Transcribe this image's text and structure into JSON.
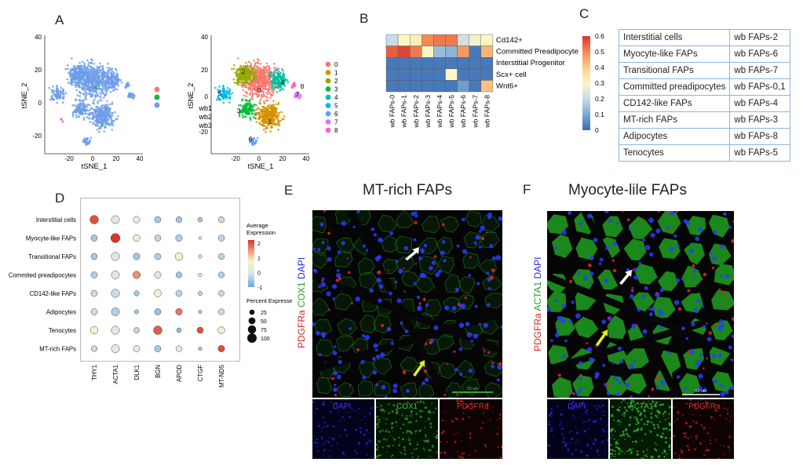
{
  "panels": {
    "a": {
      "letter": "A"
    },
    "b": {
      "letter": "B"
    },
    "c": {
      "letter": "C"
    },
    "d": {
      "letter": "D"
    },
    "e": {
      "letter": "E",
      "title": "MT-rich FAPs"
    },
    "f": {
      "letter": "F",
      "title": "Myocyte-lile FAPs"
    }
  },
  "tsne": {
    "xlabel": "tSNE_1",
    "ylabel": "tSNE_2",
    "x_ticks": [
      "-20",
      "0",
      "20",
      "40"
    ],
    "y_ticks": [
      "40",
      "20",
      "0",
      "-20"
    ],
    "left_legend_colors": [
      "#f08070",
      "#22b04b",
      "#6f9ee8"
    ],
    "right_y_ticks": [
      "40",
      "20",
      "0",
      "wb1",
      "wb2",
      "wb3",
      "-20"
    ],
    "clusters": [
      "0",
      "1",
      "2",
      "3",
      "4",
      "5",
      "6",
      "7",
      "8"
    ],
    "cluster_colors": [
      "#f8766d",
      "#d39200",
      "#93aa00",
      "#00ba38",
      "#00c19f",
      "#00b9e3",
      "#619cff",
      "#db72fb",
      "#ff61c3"
    ]
  },
  "heatmap": {
    "rows": [
      "Cd142+",
      "Committed Preadipocyte",
      "Interstitial Progenitor",
      "Scx+ cell",
      "Wnt6+"
    ],
    "cols": [
      "wb FAPs-0",
      "wb FAPs-1",
      "wb FAPs-2",
      "wb FAPs-3",
      "wb FAPs-4",
      "wb FAPs-5",
      "wb FAPs-6",
      "wb FAPs-7",
      "wb FAPs-8"
    ],
    "values": [
      [
        0.2,
        0.3,
        0.32,
        0.5,
        0.52,
        0.52,
        0.22,
        0.28,
        0.3
      ],
      [
        0.55,
        0.58,
        0.52,
        0.3,
        0.14,
        0.12,
        0.48,
        0.02,
        0.44
      ],
      [
        0.02,
        0.02,
        0.02,
        0.02,
        0.02,
        0.02,
        0.02,
        0.02,
        0.02
      ],
      [
        0.02,
        0.02,
        0.02,
        0.02,
        0.02,
        0.3,
        0.02,
        0.02,
        0.02
      ],
      [
        0.02,
        0.02,
        0.02,
        0.02,
        0.02,
        0.02,
        0.08,
        0.02,
        0.42
      ]
    ],
    "scale_ticks": [
      "0.6",
      "0.5",
      "0.4",
      "0.3",
      "0.2",
      "0.1",
      "0"
    ]
  },
  "table_c": {
    "rows": [
      [
        "Interstitial cells",
        "wb FAPs-2"
      ],
      [
        "Myocyte-like FAPs",
        "wb FAPs-6"
      ],
      [
        "Transitional FAPs",
        "wb FAPs-7"
      ],
      [
        "Committed preadipocytes",
        "wb FAPs-0,1"
      ],
      [
        "CD142-like FAPs",
        "wb FAPs-4"
      ],
      [
        "MT-rich FAPs",
        "wb FAPs-3"
      ],
      [
        "Adipocytes",
        "wb FAPs-8"
      ],
      [
        "Tenocytes",
        "wb FAPs-5"
      ]
    ]
  },
  "chart_data": {
    "type": "dotplot",
    "rows": [
      "Interstitial cells",
      "Myocyte-like FAPs",
      "Transitional FAPs",
      "Commited preadipocytes",
      "CD142-like FAPs",
      "Adipocytes",
      "Tenocytes",
      "MT-rich FAPs"
    ],
    "genes": [
      "THY1",
      "ACTA1",
      "DLK1",
      "BGN",
      "APOD",
      "CTGF",
      "MT-ND5"
    ],
    "avg_expression": [
      [
        2.0,
        0.0,
        0.3,
        -0.5,
        -0.5,
        -0.5,
        -0.2
      ],
      [
        -0.5,
        2.2,
        0.4,
        -0.3,
        -0.4,
        0.0,
        -0.3
      ],
      [
        -0.5,
        0.0,
        -0.5,
        -0.4,
        0.6,
        -0.2,
        -0.3
      ],
      [
        -0.4,
        0.0,
        1.5,
        0.0,
        -0.5,
        0.0,
        -0.4
      ],
      [
        -0.2,
        -0.2,
        -0.5,
        0.5,
        -0.3,
        -0.3,
        -0.2
      ],
      [
        -0.2,
        -0.4,
        -0.5,
        -0.6,
        1.7,
        -0.5,
        -0.2
      ],
      [
        0.6,
        0.0,
        -0.3,
        1.9,
        -0.7,
        2.0,
        0.4
      ],
      [
        -0.2,
        0.2,
        0.3,
        -0.5,
        0.2,
        -0.5,
        2.0
      ]
    ],
    "pct_expressed": [
      [
        80,
        70,
        45,
        40,
        35,
        20,
        35
      ],
      [
        40,
        95,
        50,
        40,
        45,
        5,
        40
      ],
      [
        40,
        75,
        45,
        40,
        65,
        10,
        35
      ],
      [
        40,
        70,
        60,
        45,
        35,
        10,
        35
      ],
      [
        40,
        75,
        25,
        55,
        40,
        15,
        30
      ],
      [
        40,
        70,
        15,
        40,
        45,
        8,
        35
      ],
      [
        60,
        75,
        30,
        80,
        20,
        40,
        50
      ],
      [
        35,
        70,
        40,
        40,
        35,
        10,
        45
      ]
    ],
    "color_legend_title": "Average Expression",
    "color_ticks": [
      "2",
      "1",
      "0",
      "-1"
    ],
    "color_range": [
      -1,
      2.2
    ],
    "size_legend_title": "Percent Expressed",
    "size_legend_values": [
      25,
      50,
      75,
      100
    ]
  },
  "micro_e": {
    "side_label": {
      "red": "PDGFRa",
      "green": "COX1",
      "blue": "DAPI"
    },
    "bottom": [
      "DAPI",
      "COX1",
      "PDGFRa"
    ],
    "scalebar": "50 um"
  },
  "micro_f": {
    "side_label": {
      "red": "PDGFRa",
      "green": "ACTA1",
      "blue": "DAPI"
    },
    "bottom": [
      "DAPI",
      "ACTA1",
      "PDGFRa"
    ],
    "scalebar": "50 um"
  }
}
